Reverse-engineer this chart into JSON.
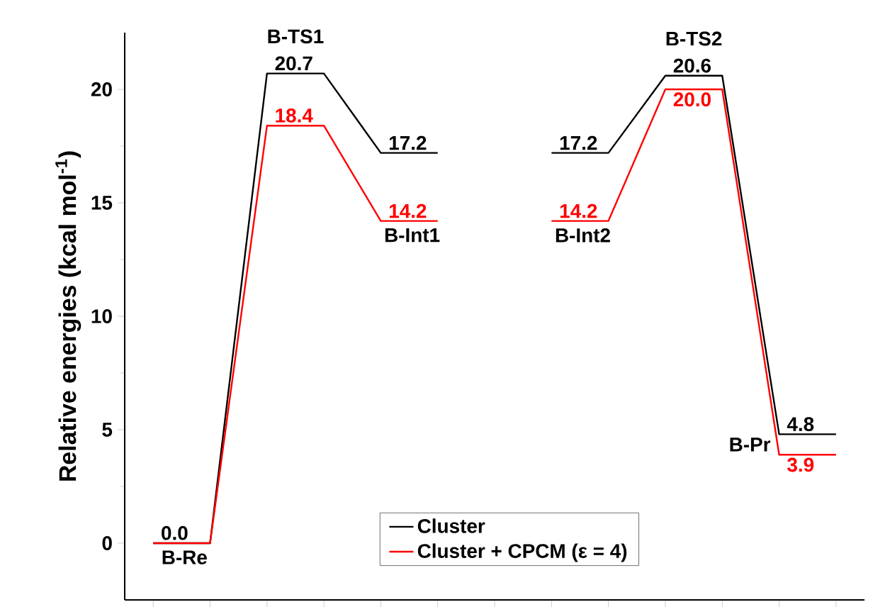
{
  "chart_data": {
    "type": "line",
    "ylabel": "Relative energies (kcal mol$^{-1}$)",
    "categories": [
      null,
      null,
      null,
      null,
      null,
      null,
      null,
      null,
      null,
      null,
      null,
      null,
      null
    ],
    "ylim": [
      -2.5,
      22.5
    ],
    "yticks": [
      0,
      5,
      10,
      15,
      20
    ],
    "tick_labels": "y",
    "legend": "bottom",
    "marker": "none",
    "line_style": "solid",
    "series": [
      {
        "name": "Cluster",
        "color": "#000000",
        "values": [
          0.0,
          0.0,
          20.7,
          20.7,
          17.2,
          17.2,
          null,
          null,
          null,
          null,
          null,
          null,
          null
        ],
        "value_labels": [
          "0.0",
          null,
          "20.7",
          null,
          "17.2",
          null,
          null,
          null,
          null,
          null,
          null,
          null,
          null
        ]
      },
      {
        "name": "Cluster + CPCM (ε = 4)",
        "color": "#ff0000",
        "values": [
          0.0,
          0.0,
          18.4,
          18.4,
          14.2,
          14.2,
          null,
          null,
          null,
          null,
          null,
          null,
          null
        ],
        "value_labels": [
          null,
          null,
          "18.4",
          null,
          "14.2",
          null,
          null,
          null,
          null,
          null,
          null,
          null,
          null
        ]
      },
      {
        "color": "#000000",
        "values": [
          null,
          null,
          null,
          null,
          null,
          null,
          null,
          17.2,
          17.2,
          20.6,
          20.6,
          4.8,
          4.8
        ],
        "value_labels": [
          null,
          null,
          null,
          null,
          null,
          null,
          null,
          "17.2",
          null,
          "20.6",
          null,
          "4.8",
          null
        ]
      },
      {
        "color": "#ff0000",
        "values": [
          null,
          null,
          null,
          null,
          null,
          null,
          null,
          14.2,
          14.2,
          20.0,
          20.0,
          3.9,
          3.9
        ],
        "value_labels": [
          null,
          null,
          null,
          null,
          null,
          null,
          null,
          "14.2",
          null,
          "20.0",
          null,
          "3.9",
          null
        ]
      }
    ],
    "annotations": [
      "B-Re",
      "B-TS1",
      "B-Int1",
      "B-Int2",
      "B-TS2",
      "B-Pr"
    ]
  }
}
